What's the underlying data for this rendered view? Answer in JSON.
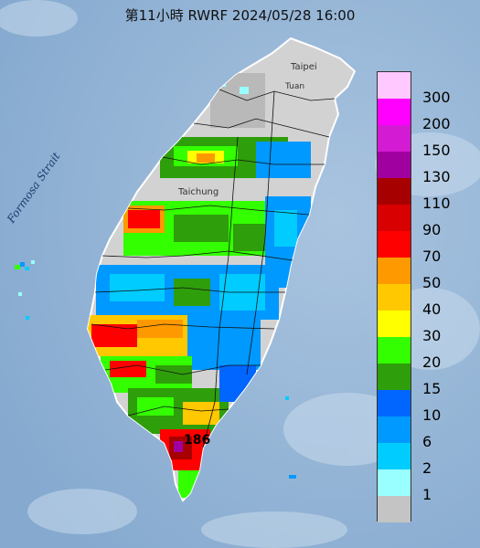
{
  "header": {
    "title": "第11小時  RWRF 2024/05/28 16:00"
  },
  "map": {
    "labels": {
      "strait": "Formosa Strait",
      "taipei": "Taipei",
      "taoyuan": "Tuan",
      "taichung": "Taichung",
      "max_value": "186"
    },
    "colors": {
      "ocean": "#8fb2d4",
      "land": "#d2d2d2",
      "land_dark": "#b9b9b9"
    }
  },
  "legend": {
    "unit": "",
    "levels": [
      {
        "label": "300",
        "color": "#ffc8ff"
      },
      {
        "label": "200",
        "color": "#ff00ff"
      },
      {
        "label": "150",
        "color": "#d31bd3"
      },
      {
        "label": "130",
        "color": "#a100a1"
      },
      {
        "label": "110",
        "color": "#a60000"
      },
      {
        "label": "90",
        "color": "#d80000"
      },
      {
        "label": "70",
        "color": "#ff0000"
      },
      {
        "label": "50",
        "color": "#ff9900"
      },
      {
        "label": "40",
        "color": "#ffc800"
      },
      {
        "label": "30",
        "color": "#ffff00"
      },
      {
        "label": "20",
        "color": "#33ff00"
      },
      {
        "label": "15",
        "color": "#2e9e0a"
      },
      {
        "label": "10",
        "color": "#0066ff"
      },
      {
        "label": "6",
        "color": "#0099ff"
      },
      {
        "label": "2",
        "color": "#00ccff"
      },
      {
        "label": "1",
        "color": "#99ffff"
      },
      {
        "label": "",
        "color": "#c4c4c4"
      }
    ]
  }
}
